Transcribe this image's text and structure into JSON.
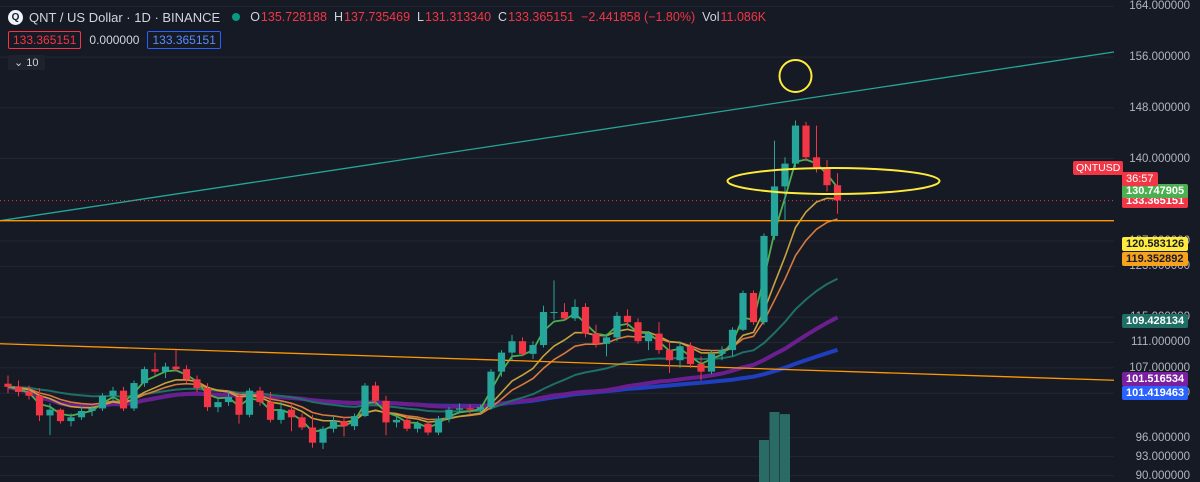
{
  "header": {
    "title": "QNT / US Dollar · 1D · BINANCE",
    "logo": "Q",
    "open_label": "O",
    "open": "135.728188",
    "high_label": "H",
    "high": "137.735469",
    "low_label": "L",
    "low": "131.313340",
    "close_label": "C",
    "close": "133.365151",
    "change": "−2.441858 (−1.80%)",
    "vol_label": "Vol",
    "vol": "11.086K",
    "status_color": "#089981"
  },
  "toolbar": {
    "bid": "133.365151",
    "spread": "0.000000",
    "ask": "133.365151",
    "interval_toggle": "10"
  },
  "chart_data": {
    "type": "candlestick",
    "symbol": "QNTUSD",
    "ylim": [
      89,
      165
    ],
    "y_ticks": [
      {
        "value": 164,
        "label": "164.000000"
      },
      {
        "value": 156,
        "label": "156.000000"
      },
      {
        "value": 148,
        "label": "148.000000"
      },
      {
        "value": 140,
        "label": "140.000000"
      },
      {
        "value": 127,
        "label": "127.000000"
      },
      {
        "value": 123,
        "label": "123.000000"
      },
      {
        "value": 115,
        "label": "115.000000"
      },
      {
        "value": 111,
        "label": "111.000000"
      },
      {
        "value": 107,
        "label": "107.000000"
      },
      {
        "value": 103,
        "label": "103.000000"
      },
      {
        "value": 96,
        "label": "96.000000"
      },
      {
        "value": 93,
        "label": "93.000000"
      },
      {
        "value": 90,
        "label": "90.000000"
      }
    ],
    "candles": [
      [
        104.5,
        105.8,
        103.0,
        104.0
      ],
      [
        104.0,
        105.0,
        102.5,
        103.2
      ],
      [
        103.2,
        104.2,
        102.0,
        102.6
      ],
      [
        102.6,
        103.8,
        98.6,
        99.5
      ],
      [
        99.5,
        101.4,
        96.4,
        100.4
      ],
      [
        100.4,
        100.6,
        98.2,
        98.6
      ],
      [
        98.6,
        99.8,
        97.8,
        99.2
      ],
      [
        99.2,
        100.8,
        98.8,
        100.2
      ],
      [
        100.2,
        101.0,
        99.4,
        100.6
      ],
      [
        100.6,
        103.0,
        100.2,
        102.6
      ],
      [
        102.6,
        104.0,
        101.8,
        103.4
      ],
      [
        103.4,
        104.0,
        100.2,
        100.6
      ],
      [
        100.6,
        105.0,
        100.2,
        104.6
      ],
      [
        104.6,
        107.2,
        104.0,
        106.8
      ],
      [
        106.8,
        109.4,
        105.8,
        106.4
      ],
      [
        106.4,
        107.8,
        105.4,
        107.2
      ],
      [
        107.2,
        109.8,
        106.4,
        106.8
      ],
      [
        106.8,
        107.4,
        104.6,
        105.2
      ],
      [
        105.2,
        105.8,
        103.2,
        103.8
      ],
      [
        103.8,
        104.6,
        100.2,
        100.8
      ],
      [
        100.8,
        102.2,
        100.0,
        101.6
      ],
      [
        101.6,
        103.4,
        101.0,
        102.4
      ],
      [
        102.4,
        103.0,
        98.2,
        99.6
      ],
      [
        99.6,
        103.8,
        99.2,
        103.4
      ],
      [
        103.4,
        104.0,
        101.0,
        101.6
      ],
      [
        101.6,
        103.2,
        98.4,
        98.8
      ],
      [
        98.8,
        101.6,
        98.2,
        100.4
      ],
      [
        100.4,
        101.2,
        97.0,
        99.2
      ],
      [
        99.2,
        99.8,
        97.2,
        97.6
      ],
      [
        97.6,
        99.6,
        94.4,
        95.2
      ],
      [
        95.2,
        97.8,
        94.2,
        97.4
      ],
      [
        97.4,
        99.4,
        96.8,
        98.6
      ],
      [
        98.6,
        99.2,
        96.2,
        97.8
      ],
      [
        97.8,
        99.8,
        97.2,
        99.4
      ],
      [
        99.4,
        104.6,
        99.2,
        104.2
      ],
      [
        104.2,
        104.8,
        101.2,
        101.8
      ],
      [
        101.8,
        102.6,
        96.4,
        98.4
      ],
      [
        98.4,
        99.4,
        97.6,
        98.8
      ],
      [
        98.8,
        99.4,
        97.0,
        97.4
      ],
      [
        97.4,
        98.6,
        96.8,
        98.2
      ],
      [
        98.2,
        98.6,
        96.4,
        96.8
      ],
      [
        96.8,
        99.4,
        96.4,
        99.0
      ],
      [
        99.0,
        100.8,
        98.4,
        100.4
      ],
      [
        100.4,
        101.4,
        99.8,
        100.6
      ],
      [
        100.6,
        101.2,
        99.6,
        100.4
      ],
      [
        100.4,
        101.2,
        99.8,
        100.8
      ],
      [
        100.8,
        106.8,
        100.4,
        106.4
      ],
      [
        106.4,
        109.8,
        105.6,
        109.4
      ],
      [
        109.4,
        112.2,
        108.2,
        111.2
      ],
      [
        111.2,
        111.8,
        108.8,
        109.2
      ],
      [
        109.2,
        111.2,
        108.4,
        110.6
      ],
      [
        110.6,
        116.8,
        110.2,
        115.8
      ],
      [
        115.8,
        120.8,
        114.6,
        115.8
      ],
      [
        115.8,
        117.2,
        114.4,
        114.8
      ],
      [
        114.8,
        117.8,
        114.4,
        116.6
      ],
      [
        116.6,
        117.2,
        111.8,
        112.4
      ],
      [
        112.4,
        113.8,
        110.2,
        110.8
      ],
      [
        110.8,
        112.4,
        108.8,
        111.8
      ],
      [
        111.8,
        115.8,
        111.2,
        115.2
      ],
      [
        115.2,
        116.2,
        113.4,
        114.2
      ],
      [
        114.2,
        114.8,
        110.8,
        111.2
      ],
      [
        111.2,
        112.8,
        109.8,
        112.4
      ],
      [
        112.4,
        114.2,
        109.2,
        109.8
      ],
      [
        109.8,
        111.2,
        106.2,
        108.2
      ],
      [
        108.2,
        111.2,
        107.0,
        110.4
      ],
      [
        110.4,
        111.0,
        107.0,
        107.6
      ],
      [
        107.6,
        108.8,
        105.0,
        106.4
      ],
      [
        106.4,
        109.8,
        106.0,
        109.2
      ],
      [
        109.2,
        110.4,
        108.2,
        109.8
      ],
      [
        109.8,
        113.4,
        108.8,
        113.0
      ],
      [
        113.0,
        119.2,
        112.8,
        118.8
      ],
      [
        118.8,
        119.2,
        113.8,
        114.2
      ],
      [
        114.2,
        128.2,
        113.8,
        127.8
      ],
      [
        127.8,
        142.8,
        127.2,
        135.6
      ],
      [
        135.6,
        140.2,
        130.2,
        139.2
      ],
      [
        139.2,
        146.0,
        138.6,
        145.2
      ],
      [
        145.2,
        145.8,
        139.6,
        140.2
      ],
      [
        140.2,
        145.2,
        137.8,
        138.6
      ],
      [
        138.6,
        139.8,
        134.8,
        135.8
      ],
      [
        135.8,
        137.7,
        131.3,
        133.4
      ]
    ],
    "volume": [
      {
        "index": 72,
        "value": 0.6
      },
      {
        "index": 73,
        "value": 1.0
      },
      {
        "index": 74,
        "value": 0.97
      }
    ],
    "colors": {
      "up": "#26a69a",
      "down": "#f23645",
      "ma_fast": "#4caf50",
      "ma_mid": "#c8a23c",
      "ma_slow": "#d77a3d",
      "ma_teal": "#1f6f66",
      "ma_purple": "#6b1f8f",
      "ma_blue": "#1f3fbf",
      "trend_upper": "#26a69a",
      "trend_lower": "#ff9800",
      "horizontal": "#ff9800",
      "annotation": "#ffeb3b",
      "volume": "#2a6b65"
    },
    "price_labels": [
      {
        "value": 133.365151,
        "label": "133.365151",
        "bg": "#f23645",
        "fg": "#ffffff"
      },
      {
        "value": 130.747905,
        "label": "130.747905",
        "bg": "#4caf50",
        "fg": "#ffffff"
      },
      {
        "value": 120.583126,
        "label": "120.583126",
        "bg": "#ffeb3b",
        "fg": "#161a25"
      },
      {
        "value": 119.352892,
        "label": "119.352892",
        "bg": "#f7a21c",
        "fg": "#161a25"
      },
      {
        "value": 109.428134,
        "label": "109.428134",
        "bg": "#1f6f66",
        "fg": "#ffffff"
      },
      {
        "value": 101.516534,
        "label": "101.516534",
        "bg": "#7b1fa2",
        "fg": "#ffffff"
      },
      {
        "value": 101.419463,
        "label": "101.419463",
        "bg": "#2962ff",
        "fg": "#ffffff"
      }
    ],
    "countdown": "36:57",
    "horizontal_level": 130.2,
    "trendlines": [
      {
        "name": "upper",
        "from": [
          0,
          130.2
        ],
        "to": [
          1122,
          157.0
        ]
      },
      {
        "name": "lower",
        "from": [
          0,
          110.8
        ],
        "to": [
          1122,
          105.0
        ]
      }
    ]
  }
}
